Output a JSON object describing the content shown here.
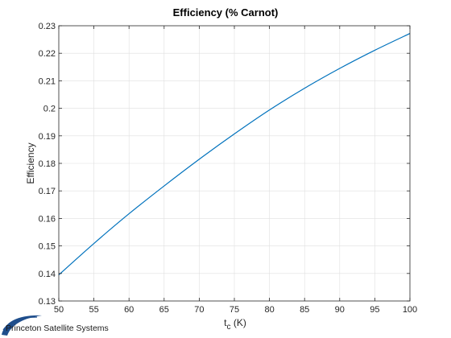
{
  "chart_data": {
    "type": "line",
    "title": "Efficiency (% Carnot)",
    "xlabel": "t",
    "xlabel_subscript": "c",
    "xlabel_unit": " (K)",
    "ylabel": "Efficiency",
    "xlim": [
      50,
      100
    ],
    "ylim": [
      0.13,
      0.23
    ],
    "xticks": [
      50,
      55,
      60,
      65,
      70,
      75,
      80,
      85,
      90,
      95,
      100
    ],
    "yticks": [
      0.13,
      0.14,
      0.15,
      0.16,
      0.17,
      0.18,
      0.19,
      0.2,
      0.21,
      0.22,
      0.23
    ],
    "ytick_labels": [
      "0.13",
      "0.14",
      "0.15",
      "0.16",
      "0.17",
      "0.18",
      "0.19",
      "0.2",
      "0.21",
      "0.22",
      "0.23"
    ],
    "grid": true,
    "series": [
      {
        "color": "#0072BD",
        "x": [
          50,
          55,
          60,
          65,
          70,
          75,
          80,
          85,
          90,
          95,
          100
        ],
        "y": [
          0.1395,
          0.1509,
          0.1617,
          0.1718,
          0.1815,
          0.1907,
          0.1994,
          0.2073,
          0.2145,
          0.2211,
          0.2272
        ]
      }
    ]
  },
  "logo": {
    "text": "Princeton Satellite Systems",
    "color": "#1f4e8c"
  }
}
